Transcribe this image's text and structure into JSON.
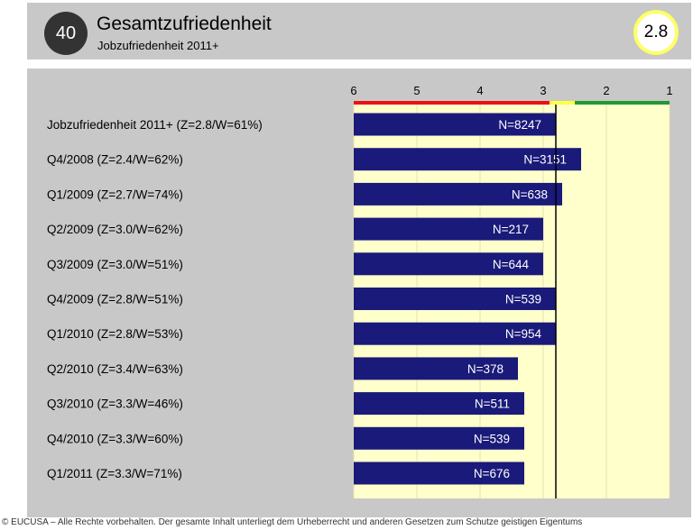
{
  "header": {
    "number": "40",
    "title": "Gesamtzufriedenheit",
    "subtitle": "Jobzufriedenheit 2011+",
    "score": "2.8"
  },
  "footer": "© EUCUSA – Alle Rechte vorbehalten. Der gesamte Inhalt unterliegt dem Urheberrecht und anderen Gesetzen zum Schutze geistigen Eigentums",
  "colors": {
    "bar": "#1a1a7a",
    "plot_bg": "#ffffcc",
    "scale_red": "#ee1111",
    "scale_yellow": "#ffff44",
    "scale_green": "#229933",
    "panel": "#c8c8c8"
  },
  "chart_data": {
    "type": "bar",
    "orientation": "horizontal",
    "xlim": [
      6,
      1
    ],
    "ticks": [
      "6",
      "5",
      "4",
      "3",
      "2",
      "1"
    ],
    "scale_bands": [
      {
        "from": 6,
        "to": 2.9,
        "color": "red"
      },
      {
        "from": 2.9,
        "to": 2.5,
        "color": "yellow"
      },
      {
        "from": 2.5,
        "to": 1,
        "color": "green"
      }
    ],
    "reference_line": 2.8,
    "categories": [
      "Jobzufriedenheit 2011+ (Z=2.8/W=61%)",
      "Q4/2008 (Z=2.4/W=62%)",
      "Q1/2009 (Z=2.7/W=74%)",
      "Q2/2009 (Z=3.0/W=62%)",
      "Q3/2009 (Z=3.0/W=51%)",
      "Q4/2009 (Z=2.8/W=51%)",
      "Q1/2010 (Z=2.8/W=53%)",
      "Q2/2010 (Z=3.4/W=63%)",
      "Q3/2010 (Z=3.3/W=46%)",
      "Q4/2010 (Z=3.3/W=60%)",
      "Q1/2011 (Z=3.3/W=71%)"
    ],
    "values": [
      2.8,
      2.4,
      2.7,
      3.0,
      3.0,
      2.8,
      2.8,
      3.4,
      3.3,
      3.3,
      3.3
    ],
    "bar_labels": [
      "N=8247",
      "N=3151",
      "N=638",
      "N=217",
      "N=644",
      "N=539",
      "N=954",
      "N=378",
      "N=511",
      "N=539",
      "N=676"
    ]
  }
}
